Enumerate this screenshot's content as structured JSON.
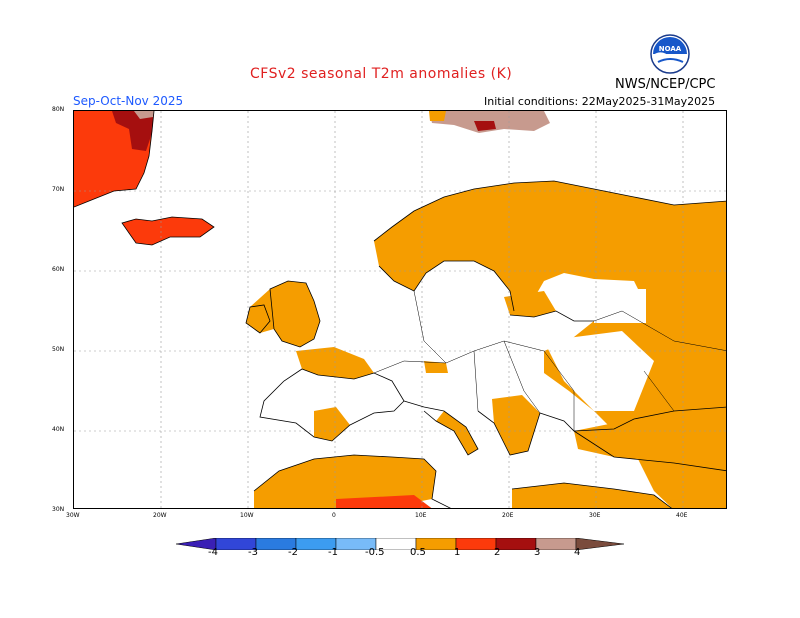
{
  "title": "CFSv2 seasonal T2m anomalies (K)",
  "season": "Sep-Oct-Nov 2025",
  "initial_conditions": "Initial conditions: 22May2025-31May2025",
  "agency": "NWS/NCEP/CPC",
  "logo_text": "NOAA",
  "lat_labels": [
    "80N",
    "70N",
    "60N",
    "50N",
    "40N",
    "30N"
  ],
  "lon_labels": [
    "30W",
    "20W",
    "10W",
    "0",
    "10E",
    "20E",
    "30E",
    "40E"
  ],
  "colorbar": {
    "labels": [
      "-4",
      "-3",
      "-2",
      "-1",
      "-0.5",
      "0.5",
      "1",
      "2",
      "3",
      "4"
    ],
    "colors": [
      "#3a1fb5",
      "#3146d8",
      "#2a7be0",
      "#3c9cf0",
      "#78bbf8",
      "#ffffff",
      "#f59d00",
      "#fc3a0b",
      "#a50f0f",
      "#c79a8e",
      "#7a4b3c"
    ]
  },
  "colors": {
    "anom_0_5_1": "#f59d00",
    "anom_1_2": "#fc3a0b",
    "anom_2_3": "#a50f0f",
    "anom_3_4": "#c79a8e"
  }
}
